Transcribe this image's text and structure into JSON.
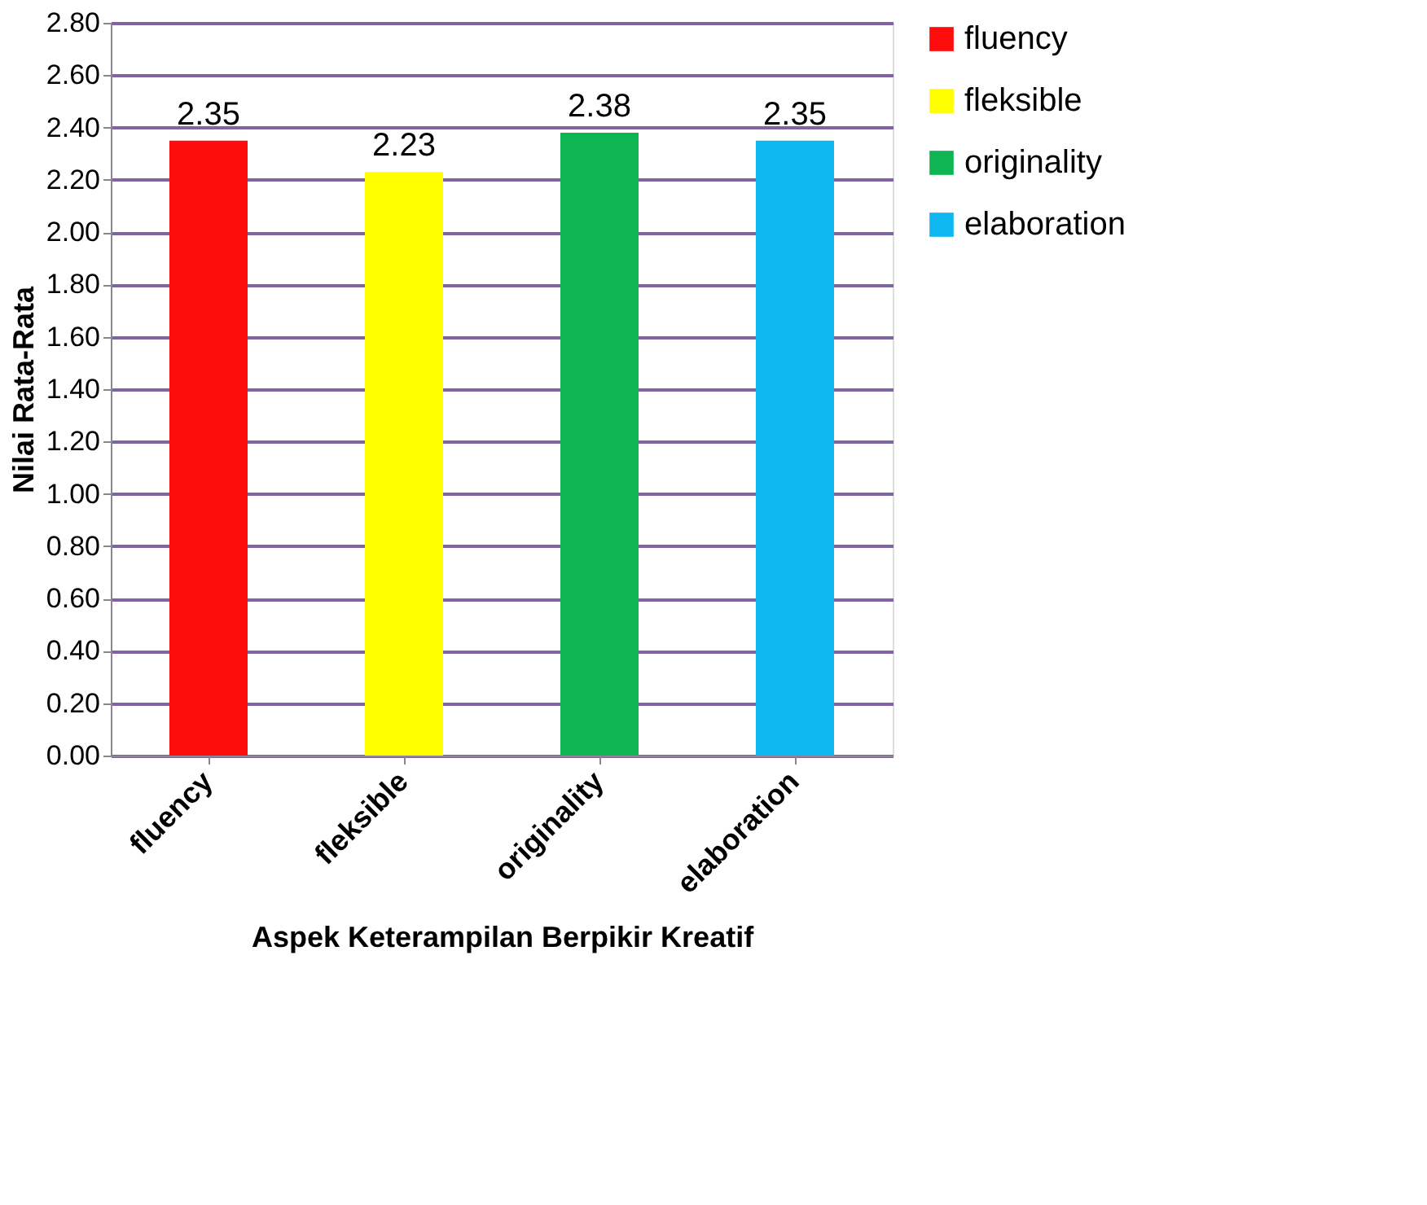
{
  "chart_data": {
    "type": "bar",
    "xlabel": "Aspek Keterampilan Berpikir Kreatif",
    "ylabel": "Nilai Rata-Rata",
    "categories": [
      "fluency",
      "fleksible",
      "originality",
      "elaboration"
    ],
    "series": [
      {
        "name": "fluency",
        "color": "#ff0d0d",
        "values": [
          2.35,
          null,
          null,
          null
        ]
      },
      {
        "name": "fleksible",
        "color": "#ffff00",
        "values": [
          null,
          2.23,
          null,
          null
        ]
      },
      {
        "name": "originality",
        "color": "#0fb553",
        "values": [
          null,
          null,
          2.38,
          null
        ]
      },
      {
        "name": "elaboration",
        "color": "#0fb8f0",
        "values": [
          null,
          null,
          null,
          2.35
        ]
      }
    ],
    "ylim": [
      0,
      2.8
    ],
    "yticks": [
      {
        "value": 0,
        "label": "0.00"
      },
      {
        "value": 0.2,
        "label": "0.20"
      },
      {
        "value": 0.4,
        "label": "0.40"
      },
      {
        "value": 0.6,
        "label": "0.60"
      },
      {
        "value": 0.8,
        "label": "0.80"
      },
      {
        "value": 1.0,
        "label": "1.00"
      },
      {
        "value": 1.2,
        "label": "1.20"
      },
      {
        "value": 1.4,
        "label": "1.40"
      },
      {
        "value": 1.6,
        "label": "1.60"
      },
      {
        "value": 1.8,
        "label": "1.80"
      },
      {
        "value": 2.0,
        "label": "2.00"
      },
      {
        "value": 2.2,
        "label": "2.20"
      },
      {
        "value": 2.4,
        "label": "2.40"
      },
      {
        "value": 2.6,
        "label": "2.60"
      },
      {
        "value": 2.8,
        "label": "2.80"
      }
    ],
    "grid": "y",
    "legend": "right",
    "data_labels": true
  }
}
